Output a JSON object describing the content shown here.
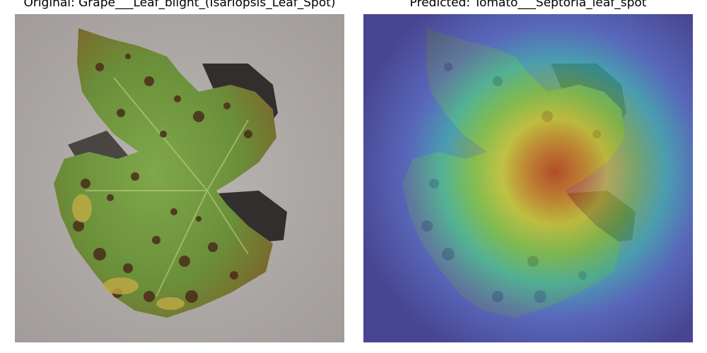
{
  "figure": {
    "left_panel": {
      "title": "Original: Grape___Leaf_blight_(Isariopsis_Leaf_Spot)"
    },
    "right_panel": {
      "title": "Predicted: Tomato___Septoria_leaf_spot"
    }
  },
  "colors": {
    "background_surface": "#b1aca9",
    "leaf_green": "#6f9a3e",
    "leaf_dark_spot": "#4a2d1a",
    "leaf_yellow": "#c8b24a",
    "heatmap_low": "#3a3aa0",
    "heatmap_mid": "#40c8c8",
    "heatmap_high": "#e0302a"
  }
}
